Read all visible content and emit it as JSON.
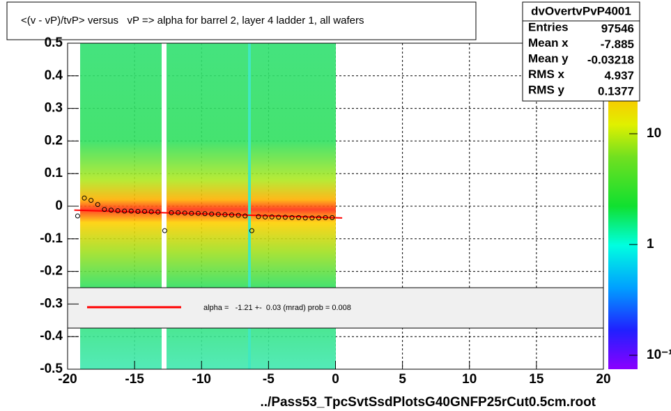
{
  "chart_data": {
    "type": "scatter",
    "title": "<(v - vP)/tvP> versus   vP => alpha for barrel 2, layer 4 ladder 1, all wafers",
    "x_label": "../Pass53_TpcSvtSsdPlotsG40GNFP25rCut0.5cm.root",
    "xlim": [
      -20,
      20
    ],
    "ylim": [
      -0.5,
      0.5
    ],
    "xticks": [
      -20,
      -15,
      -10,
      -5,
      0,
      5,
      10,
      15,
      20
    ],
    "yticks": [
      -0.5,
      -0.4,
      -0.3,
      -0.2,
      -0.1,
      0,
      0.1,
      0.2,
      0.3,
      0.4,
      0.5
    ],
    "grid": true,
    "x": [
      -19.25,
      -18.75,
      -18.25,
      -17.75,
      -17.25,
      -16.75,
      -16.25,
      -15.75,
      -15.25,
      -14.75,
      -14.25,
      -13.75,
      -13.25,
      -12.75,
      -12.25,
      -11.75,
      -11.25,
      -10.75,
      -10.25,
      -9.75,
      -9.25,
      -8.75,
      -8.25,
      -7.75,
      -7.25,
      -6.75,
      -6.25,
      -5.75,
      -5.25,
      -4.75,
      -4.25,
      -3.75,
      -3.25,
      -2.75,
      -2.25,
      -1.75,
      -1.25,
      -0.75,
      -0.25
    ],
    "values": [
      -0.03,
      0.025,
      0.018,
      0.005,
      -0.01,
      -0.012,
      -0.014,
      -0.015,
      -0.015,
      -0.016,
      -0.016,
      -0.017,
      -0.018,
      -0.075,
      -0.02,
      -0.02,
      -0.021,
      -0.022,
      -0.022,
      -0.023,
      -0.024,
      -0.025,
      -0.026,
      -0.027,
      -0.028,
      -0.03,
      -0.075,
      -0.032,
      -0.033,
      -0.033,
      -0.034,
      -0.034,
      -0.035,
      -0.035,
      -0.036,
      -0.036,
      -0.036,
      -0.035,
      -0.035
    ],
    "fit": {
      "name": "alpha =   -1.21 +-  0.03 (mrad) prob = 0.008",
      "color": "#ff0000",
      "x": [
        -19.5,
        0.5
      ],
      "values": [
        -0.012,
        -0.036
      ]
    },
    "stats": {
      "title": "dvOvertvPvP4001",
      "rows": [
        [
          "Entries",
          "97546"
        ],
        [
          "Mean x",
          "-7.885"
        ],
        [
          "Mean y",
          "-0.03218"
        ],
        [
          "RMS x",
          "4.937"
        ],
        [
          "RMS y",
          "0.1377"
        ]
      ]
    },
    "colorbar": {
      "ticks": [
        {
          "value": 10,
          "label": "10"
        },
        {
          "value": 1,
          "label": "1"
        },
        {
          "value": 0.1,
          "label": "10⁻¹"
        }
      ]
    }
  }
}
